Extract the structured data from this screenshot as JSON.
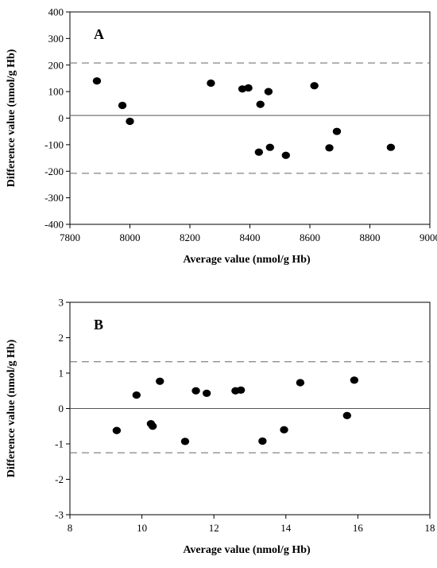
{
  "chart_data": [
    {
      "type": "scatter",
      "panel_label": "A",
      "xlabel": "Average value (nmol/g Hb)",
      "ylabel": "Difference value (nmol/g Hb)",
      "xlim": [
        7800,
        9000
      ],
      "ylim": [
        -400,
        400
      ],
      "xticks": [
        7800,
        8000,
        8200,
        8400,
        8600,
        8800,
        9000
      ],
      "yticks": [
        -400,
        -300,
        -200,
        -100,
        0,
        100,
        200,
        300,
        400
      ],
      "grid": false,
      "zero_line": 10,
      "limit_lines": [
        208,
        -208
      ],
      "points": [
        {
          "x": 7890,
          "y": 140
        },
        {
          "x": 7975,
          "y": 48
        },
        {
          "x": 8000,
          "y": -12
        },
        {
          "x": 8270,
          "y": 132
        },
        {
          "x": 8375,
          "y": 110
        },
        {
          "x": 8395,
          "y": 114
        },
        {
          "x": 8430,
          "y": -128
        },
        {
          "x": 8435,
          "y": 52
        },
        {
          "x": 8462,
          "y": 100
        },
        {
          "x": 8467,
          "y": -110
        },
        {
          "x": 8520,
          "y": -140
        },
        {
          "x": 8615,
          "y": 122
        },
        {
          "x": 8665,
          "y": -112
        },
        {
          "x": 8690,
          "y": -50
        },
        {
          "x": 8870,
          "y": -110
        }
      ]
    },
    {
      "type": "scatter",
      "panel_label": "B",
      "xlabel": "Average value (nmol/g Hb)",
      "ylabel": "Difference value (nmol/g Hb)",
      "xlim": [
        8,
        18
      ],
      "ylim": [
        -3,
        3
      ],
      "xticks": [
        8,
        10,
        12,
        14,
        16,
        18
      ],
      "yticks": [
        -3,
        -2,
        -1,
        0,
        1,
        2,
        3
      ],
      "grid": false,
      "zero_line": 0,
      "limit_lines": [
        1.32,
        -1.25
      ],
      "points": [
        {
          "x": 9.3,
          "y": -0.62
        },
        {
          "x": 9.85,
          "y": 0.38
        },
        {
          "x": 10.25,
          "y": -0.43
        },
        {
          "x": 10.3,
          "y": -0.5
        },
        {
          "x": 10.5,
          "y": 0.77
        },
        {
          "x": 11.2,
          "y": -0.93
        },
        {
          "x": 11.5,
          "y": 0.5
        },
        {
          "x": 11.8,
          "y": 0.43
        },
        {
          "x": 12.6,
          "y": 0.5
        },
        {
          "x": 12.75,
          "y": 0.52
        },
        {
          "x": 13.35,
          "y": -0.92
        },
        {
          "x": 13.95,
          "y": -0.6
        },
        {
          "x": 14.4,
          "y": 0.73
        },
        {
          "x": 15.7,
          "y": -0.2
        },
        {
          "x": 15.9,
          "y": 0.8
        }
      ]
    }
  ]
}
